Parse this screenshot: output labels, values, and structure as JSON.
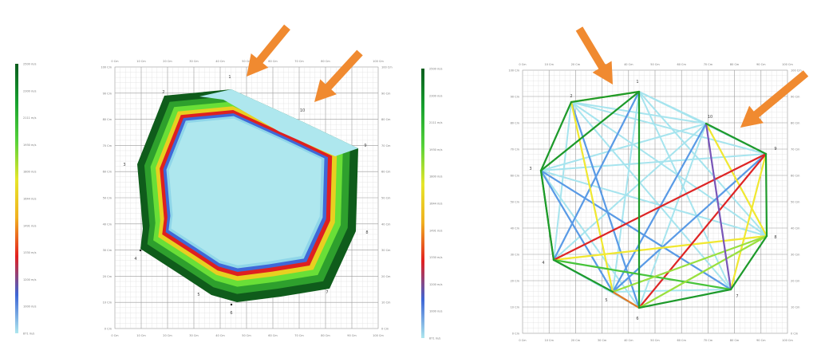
{
  "colors": {
    "arrow": "#f08a30",
    "grid_major": "#9a9a9a",
    "grid_minor": "#d7d7d7",
    "background": "#ffffff"
  },
  "colorbar": {
    "stops": [
      "#0b5d1e",
      "#17a12f",
      "#55d23a",
      "#e6e62a",
      "#f0b020",
      "#e32020",
      "#3d66d6",
      "#aee7ee"
    ]
  },
  "left_panel": {
    "heatmap_band_colors": [
      "#0f5c1b",
      "#2ea02d",
      "#69df37",
      "#e8d020",
      "#de2020",
      "#3f68d8",
      "#8fd6e9",
      "#aee7ee"
    ],
    "colorbar_left_labels": [
      "2500 m/s",
      "2300 m/s",
      "2111 m/s",
      "1930 m/s",
      "1800 m/s",
      "1644 m/s",
      "1491 m/s",
      "1330 m/s",
      "1200 m/s",
      "1000 m/s",
      "871 m/s"
    ],
    "colorbar_right_labels": [
      "2500 m/s",
      "2300 m/s",
      "2111 m/s",
      "1930 m/s",
      "1800 m/s",
      "1644 m/s",
      "1491 m/s",
      "1330 m/s",
      "1200 m/s",
      "1000 m/s",
      "871 m/s"
    ],
    "x_ticks": [
      "0 Cm",
      "10 Cm",
      "20 Cm",
      "30 Cm",
      "40 Cm",
      "50 Cm",
      "60 Cm",
      "70 Cm",
      "80 Cm",
      "90 Cm",
      "100 Cm"
    ],
    "y_ticks": [
      "100 Cm",
      "90 Cm",
      "80 Cm",
      "70 Cm",
      "60 Cm",
      "50 Cm",
      "40 Cm",
      "30 Cm",
      "20 Cm",
      "10 Cm",
      "0 Cm"
    ],
    "sensors": [
      "1",
      "2",
      "3",
      "4",
      "5",
      "6",
      "7",
      "8",
      "9",
      "10"
    ]
  },
  "right_panel": {
    "x_ticks": [
      "0 Cm",
      "10 Cm",
      "20 Cm",
      "30 Cm",
      "40 Cm",
      "50 Cm",
      "60 Cm",
      "70 Cm",
      "80 Cm",
      "90 Cm",
      "100 Cm"
    ],
    "y_ticks": [
      "100 Cm",
      "90 Cm",
      "80 Cm",
      "70 Cm",
      "60 Cm",
      "50 Cm",
      "40 Cm",
      "30 Cm",
      "20 Cm",
      "10 Cm",
      "0 Cm"
    ],
    "sensors": [
      "1",
      "2",
      "3",
      "4",
      "5",
      "6",
      "7",
      "8",
      "9",
      "10"
    ],
    "path_colors": {
      "dark_green": "#1e9a2a",
      "green": "#48c43a",
      "light_green": "#9be03c",
      "yellow": "#f2e830",
      "red": "#e02525",
      "blue": "#5a9ae6",
      "cyan": "#a6e4ee",
      "purple": "#7a55b8",
      "orange": "#e07a28"
    }
  }
}
